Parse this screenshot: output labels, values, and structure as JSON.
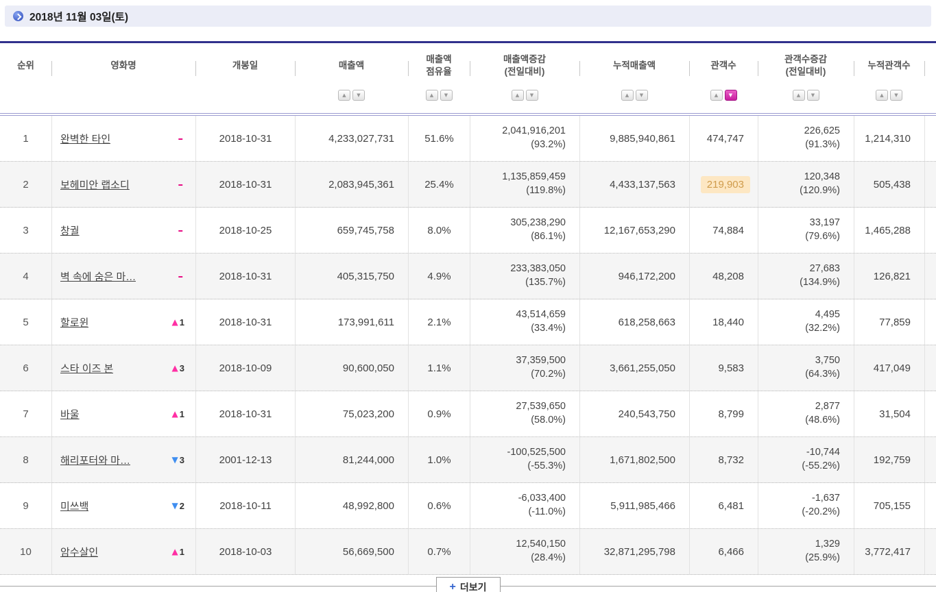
{
  "page": {
    "date_title": "2018년 11월 03일(토)",
    "more_label": "더보기",
    "more_plus": "+"
  },
  "colors": {
    "table_top_border": "#30308c",
    "header_double_line": "#9a9ad0",
    "sort_active_pink": "#c81f9f",
    "rank_up_pink": "#ff2fa4",
    "rank_down_blue": "#3f8ef0",
    "rank_same_dash": "#e6007e",
    "highlight_cell_bg": "#fde7c3",
    "highlight_cell_text": "#cf9b4b",
    "date_bar_bg": "#ebedf7"
  },
  "icons": {
    "date_bullet": "blue-circle-arrow",
    "sort_asc": "▲",
    "sort_desc": "▼",
    "more_plus": "plus"
  },
  "table": {
    "sort_icons": {
      "asc": "▲",
      "desc": "▼"
    },
    "rank_icons": {
      "up": "▲",
      "down": "▼",
      "same": "–"
    },
    "columns": [
      {
        "label1": "순위",
        "label2": "",
        "sortable": false,
        "active": ""
      },
      {
        "label1": "영화명",
        "label2": "",
        "sortable": false,
        "active": ""
      },
      {
        "label1": "개봉일",
        "label2": "",
        "sortable": false,
        "active": ""
      },
      {
        "label1": "매출액",
        "label2": "",
        "sortable": true,
        "active": ""
      },
      {
        "label1": "매출액",
        "label2": "점유율",
        "sortable": true,
        "active": ""
      },
      {
        "label1": "매출액증감",
        "label2": "(전일대비)",
        "sortable": true,
        "active": ""
      },
      {
        "label1": "누적매출액",
        "label2": "",
        "sortable": true,
        "active": ""
      },
      {
        "label1": "관객수",
        "label2": "",
        "sortable": true,
        "active": "desc"
      },
      {
        "label1": "관객수증감",
        "label2": "(전일대비)",
        "sortable": true,
        "active": ""
      },
      {
        "label1": "누적관객수",
        "label2": "",
        "sortable": true,
        "active": ""
      }
    ],
    "rows": [
      {
        "rank": "1",
        "title": "완벽한 타인",
        "rank_change": {
          "dir": "same",
          "value": ""
        },
        "release_date": "2018-10-31",
        "sales": "4,233,027,731",
        "share": "51.6%",
        "sales_change": "2,041,916,201",
        "sales_change_pct": "(93.2%)",
        "cum_sales": "9,885,940,861",
        "audience": "474,747",
        "audience_highlight": false,
        "aud_change": "226,625",
        "aud_change_pct": "(91.3%)",
        "cum_audience": "1,214,310"
      },
      {
        "rank": "2",
        "title": "보헤미안 랩소디",
        "rank_change": {
          "dir": "same",
          "value": ""
        },
        "release_date": "2018-10-31",
        "sales": "2,083,945,361",
        "share": "25.4%",
        "sales_change": "1,135,859,459",
        "sales_change_pct": "(119.8%)",
        "cum_sales": "4,433,137,563",
        "audience": "219,903",
        "audience_highlight": true,
        "aud_change": "120,348",
        "aud_change_pct": "(120.9%)",
        "cum_audience": "505,438"
      },
      {
        "rank": "3",
        "title": "창궐",
        "rank_change": {
          "dir": "same",
          "value": ""
        },
        "release_date": "2018-10-25",
        "sales": "659,745,758",
        "share": "8.0%",
        "sales_change": "305,238,290",
        "sales_change_pct": "(86.1%)",
        "cum_sales": "12,167,653,290",
        "audience": "74,884",
        "audience_highlight": false,
        "aud_change": "33,197",
        "aud_change_pct": "(79.6%)",
        "cum_audience": "1,465,288"
      },
      {
        "rank": "4",
        "title": "벽 속에 숨은 마…",
        "rank_change": {
          "dir": "same",
          "value": ""
        },
        "release_date": "2018-10-31",
        "sales": "405,315,750",
        "share": "4.9%",
        "sales_change": "233,383,050",
        "sales_change_pct": "(135.7%)",
        "cum_sales": "946,172,200",
        "audience": "48,208",
        "audience_highlight": false,
        "aud_change": "27,683",
        "aud_change_pct": "(134.9%)",
        "cum_audience": "126,821"
      },
      {
        "rank": "5",
        "title": "할로윈",
        "rank_change": {
          "dir": "up",
          "value": "1"
        },
        "release_date": "2018-10-31",
        "sales": "173,991,611",
        "share": "2.1%",
        "sales_change": "43,514,659",
        "sales_change_pct": "(33.4%)",
        "cum_sales": "618,258,663",
        "audience": "18,440",
        "audience_highlight": false,
        "aud_change": "4,495",
        "aud_change_pct": "(32.2%)",
        "cum_audience": "77,859"
      },
      {
        "rank": "6",
        "title": "스타 이즈 본",
        "rank_change": {
          "dir": "up",
          "value": "3"
        },
        "release_date": "2018-10-09",
        "sales": "90,600,050",
        "share": "1.1%",
        "sales_change": "37,359,500",
        "sales_change_pct": "(70.2%)",
        "cum_sales": "3,661,255,050",
        "audience": "9,583",
        "audience_highlight": false,
        "aud_change": "3,750",
        "aud_change_pct": "(64.3%)",
        "cum_audience": "417,049"
      },
      {
        "rank": "7",
        "title": "바울",
        "rank_change": {
          "dir": "up",
          "value": "1"
        },
        "release_date": "2018-10-31",
        "sales": "75,023,200",
        "share": "0.9%",
        "sales_change": "27,539,650",
        "sales_change_pct": "(58.0%)",
        "cum_sales": "240,543,750",
        "audience": "8,799",
        "audience_highlight": false,
        "aud_change": "2,877",
        "aud_change_pct": "(48.6%)",
        "cum_audience": "31,504"
      },
      {
        "rank": "8",
        "title": "해리포터와 마…",
        "rank_change": {
          "dir": "down",
          "value": "3"
        },
        "release_date": "2001-12-13",
        "sales": "81,244,000",
        "share": "1.0%",
        "sales_change": "-100,525,500",
        "sales_change_pct": "(-55.3%)",
        "cum_sales": "1,671,802,500",
        "audience": "8,732",
        "audience_highlight": false,
        "aud_change": "-10,744",
        "aud_change_pct": "(-55.2%)",
        "cum_audience": "192,759"
      },
      {
        "rank": "9",
        "title": "미쓰백",
        "rank_change": {
          "dir": "down",
          "value": "2"
        },
        "release_date": "2018-10-11",
        "sales": "48,992,800",
        "share": "0.6%",
        "sales_change": "-6,033,400",
        "sales_change_pct": "(-11.0%)",
        "cum_sales": "5,911,985,466",
        "audience": "6,481",
        "audience_highlight": false,
        "aud_change": "-1,637",
        "aud_change_pct": "(-20.2%)",
        "cum_audience": "705,155"
      },
      {
        "rank": "10",
        "title": "암수살인",
        "rank_change": {
          "dir": "up",
          "value": "1"
        },
        "release_date": "2018-10-03",
        "sales": "56,669,500",
        "share": "0.7%",
        "sales_change": "12,540,150",
        "sales_change_pct": "(28.4%)",
        "cum_sales": "32,871,295,798",
        "audience": "6,466",
        "audience_highlight": false,
        "aud_change": "1,329",
        "aud_change_pct": "(25.9%)",
        "cum_audience": "3,772,417"
      }
    ]
  }
}
